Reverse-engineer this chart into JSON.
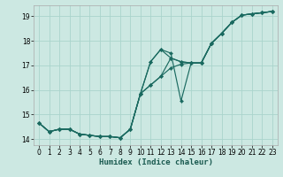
{
  "xlabel": "Humidex (Indice chaleur)",
  "bg_color": "#cce8e2",
  "grid_color": "#aad4cc",
  "line_color": "#1a6a60",
  "xlim": [
    -0.5,
    23.5
  ],
  "ylim": [
    13.75,
    19.45
  ],
  "xticks": [
    0,
    1,
    2,
    3,
    4,
    5,
    6,
    7,
    8,
    9,
    10,
    11,
    12,
    13,
    14,
    15,
    16,
    17,
    18,
    19,
    20,
    21,
    22,
    23
  ],
  "yticks": [
    14,
    15,
    16,
    17,
    18,
    19
  ],
  "series": [
    {
      "x": [
        0,
        1,
        2,
        3,
        4,
        5,
        6,
        7,
        8,
        9,
        10,
        11,
        12,
        13,
        14,
        15,
        16,
        17,
        18,
        19,
        20,
        21,
        22,
        23
      ],
      "y": [
        14.65,
        14.3,
        14.4,
        14.4,
        14.2,
        14.15,
        14.1,
        14.1,
        14.05,
        14.4,
        15.85,
        16.2,
        16.55,
        16.9,
        17.05,
        17.1,
        17.1,
        17.9,
        18.3,
        18.75,
        19.05,
        19.1,
        19.15,
        19.2
      ]
    },
    {
      "x": [
        0,
        1,
        2,
        3,
        4,
        5,
        6,
        7,
        8,
        9,
        10,
        11,
        12,
        13,
        14,
        15,
        16,
        17,
        18,
        19,
        20,
        21,
        22,
        23
      ],
      "y": [
        14.65,
        14.3,
        14.4,
        14.4,
        14.2,
        14.15,
        14.1,
        14.1,
        14.05,
        14.4,
        15.85,
        16.2,
        16.55,
        17.3,
        17.15,
        17.1,
        17.1,
        17.9,
        18.3,
        18.75,
        19.05,
        19.1,
        19.15,
        19.2
      ]
    },
    {
      "x": [
        0,
        1,
        2,
        3,
        4,
        5,
        6,
        7,
        8,
        9,
        10,
        11,
        12,
        13,
        14,
        15,
        16,
        17,
        18,
        19,
        20,
        21,
        22,
        23
      ],
      "y": [
        14.65,
        14.3,
        14.4,
        14.4,
        14.2,
        14.15,
        14.1,
        14.1,
        14.05,
        14.4,
        15.85,
        17.15,
        17.65,
        17.3,
        17.15,
        17.1,
        17.1,
        17.9,
        18.3,
        18.75,
        19.05,
        19.1,
        19.15,
        19.2
      ]
    },
    {
      "x": [
        0,
        1,
        2,
        3,
        4,
        5,
        6,
        7,
        8,
        9,
        10,
        11,
        12,
        13,
        14,
        15,
        16,
        17,
        18,
        19,
        20,
        21,
        22,
        23
      ],
      "y": [
        14.65,
        14.3,
        14.4,
        14.4,
        14.2,
        14.15,
        14.1,
        14.1,
        14.05,
        14.4,
        15.85,
        17.15,
        17.65,
        17.5,
        15.55,
        17.1,
        17.1,
        17.9,
        18.3,
        18.75,
        19.05,
        19.1,
        19.15,
        19.2
      ]
    }
  ],
  "markersize": 2.2,
  "linewidth": 0.85,
  "xlabel_fontsize": 6.5,
  "tick_fontsize": 5.5
}
